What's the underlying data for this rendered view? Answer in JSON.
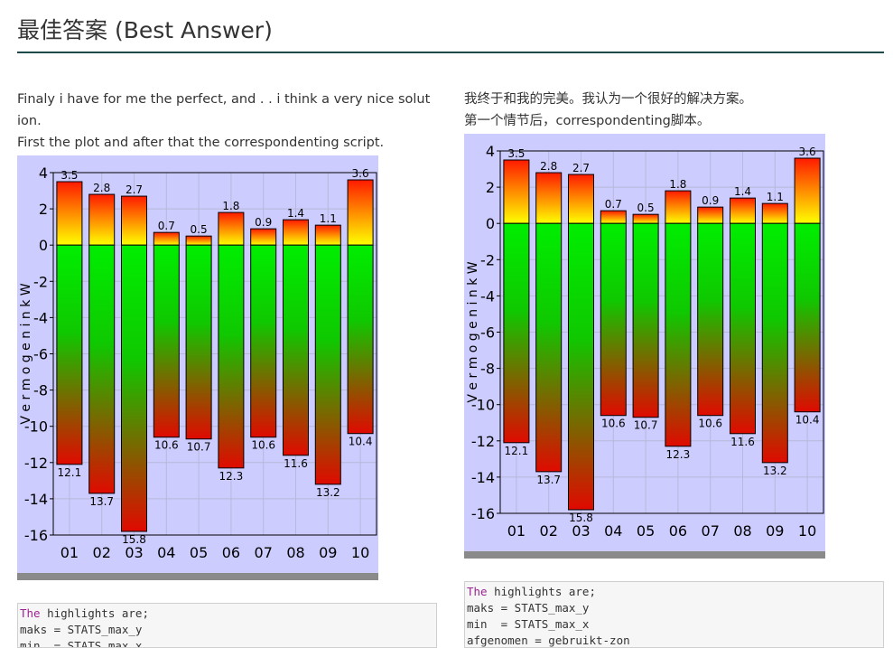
{
  "page": {
    "title": "最佳答案 (Best Answer)"
  },
  "left": {
    "paragraphs": [
      "Finaly i have for me the perfect, and . . i think a very nice solut",
      "ion.",
      "First the plot and after that the correspondenting script."
    ],
    "code_lines": [
      {
        "kw": "The",
        "rest": " highlights are;"
      },
      {
        "kw": "",
        "rest": "maks = STATS_max_y"
      },
      {
        "kw": "",
        "rest": "min  = STATS_max_x"
      }
    ]
  },
  "right": {
    "paragraphs": [
      "我终于和我的完美。我认为一个很好的解决方案。",
      "第一个情节后，correspondenting脚本。"
    ],
    "code_lines": [
      {
        "kw": "The",
        "rest": " highlights are;"
      },
      {
        "kw": "",
        "rest": "maks = STATS_max_y"
      },
      {
        "kw": "",
        "rest": "min  = STATS_max_x"
      },
      {
        "kw": "",
        "rest": "afgenomen = gebruikt-zon"
      }
    ]
  },
  "colors": {
    "plot_bg": "#ccccff",
    "rule": "#1f4a4a",
    "keyword": "#9b2393"
  },
  "chart_data": [
    {
      "type": "bar",
      "title": "",
      "xlabel": "",
      "ylabel": "V e r m o g e n  i n  k W",
      "categories": [
        "01",
        "02",
        "03",
        "04",
        "05",
        "06",
        "07",
        "08",
        "09",
        "10"
      ],
      "series": [
        {
          "values": [
            3.5,
            2.8,
            2.7,
            0.7,
            0.5,
            1.8,
            0.9,
            1.4,
            1.1,
            3.6
          ]
        },
        {
          "values": [
            -12.1,
            -13.7,
            -15.8,
            -10.6,
            -10.7,
            -12.3,
            -10.6,
            -11.6,
            -13.2,
            -10.4
          ]
        }
      ],
      "pos_labels": [
        "3.5",
        "2.8",
        "2.7",
        "0.7",
        "0.5",
        "1.8",
        "0.9",
        "1.4",
        "1.1",
        "3.6"
      ],
      "neg_labels": [
        "12.1",
        "13.7",
        "15.8",
        "10.6",
        "10.7",
        "12.3",
        "10.6",
        "11.6",
        "13.2",
        "10.4"
      ],
      "ylim": [
        -16,
        4
      ],
      "yticks": [
        "4",
        "2",
        "0",
        "-2",
        "-4",
        "-6",
        "-8",
        "-10",
        "-12",
        "-14",
        "-16"
      ],
      "grid": true
    },
    {
      "type": "bar",
      "title": "",
      "xlabel": "",
      "ylabel": "V e r m o g e n  i n  k W",
      "categories": [
        "01",
        "02",
        "03",
        "04",
        "05",
        "06",
        "07",
        "08",
        "09",
        "10"
      ],
      "series": [
        {
          "values": [
            3.5,
            2.8,
            2.7,
            0.7,
            0.5,
            1.8,
            0.9,
            1.4,
            1.1,
            3.6
          ]
        },
        {
          "values": [
            -12.1,
            -13.7,
            -15.8,
            -10.6,
            -10.7,
            -12.3,
            -10.6,
            -11.6,
            -13.2,
            -10.4
          ]
        }
      ],
      "pos_labels": [
        "3.5",
        "2.8",
        "2.7",
        "0.7",
        "0.5",
        "1.8",
        "0.9",
        "1.4",
        "1.1",
        "3.6"
      ],
      "neg_labels": [
        "12.1",
        "13.7",
        "15.8",
        "10.6",
        "10.7",
        "12.3",
        "10.6",
        "11.6",
        "13.2",
        "10.4"
      ],
      "ylim": [
        -16,
        4
      ],
      "yticks": [
        "4",
        "2",
        "0",
        "-2",
        "-4",
        "-6",
        "-8",
        "-10",
        "-12",
        "-14",
        "-16"
      ],
      "grid": true
    }
  ]
}
